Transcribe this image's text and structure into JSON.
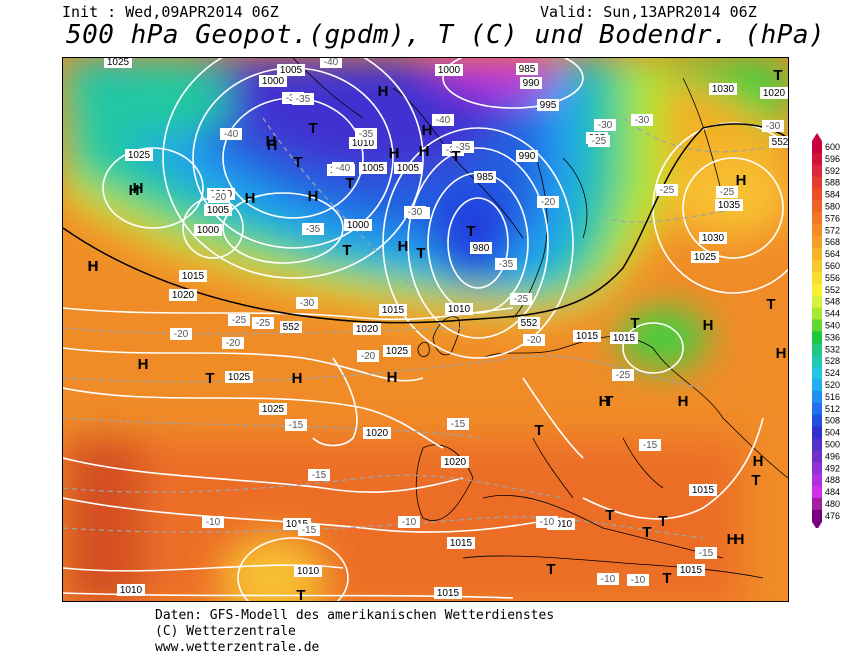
{
  "header": {
    "init": "Init : Wed,09APR2014 06Z",
    "valid": "Valid: Sun,13APR2014 06Z",
    "title": "500 hPa Geopot.(gpdm), T (C) und Bodendr. (hPa)"
  },
  "legend": {
    "values": [
      "600",
      "596",
      "592",
      "588",
      "584",
      "580",
      "576",
      "572",
      "568",
      "564",
      "560",
      "556",
      "552",
      "548",
      "544",
      "540",
      "536",
      "532",
      "528",
      "524",
      "520",
      "516",
      "512",
      "508",
      "504",
      "500",
      "496",
      "492",
      "488",
      "484",
      "480",
      "476"
    ],
    "colors": [
      "#c8003c",
      "#d2143c",
      "#dc283c",
      "#e63c32",
      "#ec5028",
      "#f06428",
      "#f07828",
      "#f48c28",
      "#f4a028",
      "#f8b428",
      "#f8c830",
      "#f8dc30",
      "#f8f030",
      "#d8f040",
      "#a8e830",
      "#60d830",
      "#20c840",
      "#20c880",
      "#20c8b0",
      "#20c8e0",
      "#20b0f0",
      "#2090f0",
      "#2070f0",
      "#2050e0",
      "#3030d0",
      "#5030c8",
      "#7030c8",
      "#9030d8",
      "#b030e0",
      "#d030e8",
      "#a020a0",
      "#780080"
    ]
  },
  "isobar_labels": [
    "1025",
    "1005",
    "1000",
    "990",
    "985",
    "995",
    "1030",
    "1020",
    "1025",
    "1000",
    "1010",
    "1005",
    "1000",
    "1010",
    "995",
    "1035",
    "1030",
    "1025",
    "990",
    "1005",
    "1000",
    "1005",
    "1000",
    "985",
    "980",
    "1010",
    "1015",
    "1020",
    "1015",
    "1020",
    "1025",
    "1015",
    "1015",
    "1025",
    "1025",
    "1020",
    "1020",
    "1015",
    "1015",
    "1010",
    "1015",
    "1010",
    "1015",
    "1015",
    "1010"
  ],
  "temp_labels": [
    "-40",
    "-35",
    "-35",
    "-40",
    "-35",
    "-40",
    "-35",
    "-40",
    "-35",
    "-30",
    "-30",
    "-25",
    "-35",
    "-30",
    "-35",
    "-25",
    "-25",
    "-30",
    "-30",
    "-25",
    "-20",
    "-30",
    "-25",
    "-20",
    "-20",
    "-25",
    "-20",
    "-20",
    "-25",
    "-15",
    "-15",
    "-20",
    "-15",
    "-10",
    "-10",
    "-15",
    "-10",
    "-15",
    "-10",
    "-15",
    "-10"
  ],
  "geopot_labels": [
    "552",
    "552",
    "552"
  ],
  "pressure_centers": [
    "H",
    "H",
    "T",
    "H",
    "H",
    "T",
    "H",
    "T",
    "H",
    "H",
    "T",
    "H",
    "H",
    "T",
    "T",
    "H",
    "H",
    "H",
    "T",
    "T",
    "H",
    "T",
    "H",
    "H",
    "H",
    "T",
    "H",
    "H",
    "H",
    "H",
    "T",
    "T",
    "T",
    "T",
    "H",
    "T",
    "H",
    "T",
    "H",
    "T",
    "H",
    "T",
    "T",
    "T"
  ],
  "footer": {
    "line1": "Daten: GFS-Modell des amerikanischen Wetterdienstes",
    "line2": "(C) Wetterzentrale",
    "line3": "www.wetterzentrale.de"
  }
}
